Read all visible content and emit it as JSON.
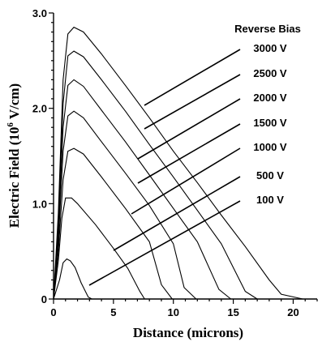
{
  "chart_data": {
    "type": "line",
    "title": "",
    "xlabel": "Distance (microns)",
    "ylabel_main": "Electric Field  (10",
    "ylabel_sup": "6",
    "ylabel_end": " V/cm)",
    "xlim": [
      0,
      22
    ],
    "ylim": [
      0,
      3.0
    ],
    "x_ticks": [
      0,
      5,
      10,
      15,
      20
    ],
    "x_tick_labels": [
      "0",
      "5",
      "10",
      "15",
      "20"
    ],
    "y_ticks": [
      0,
      1.0,
      2.0,
      3.0
    ],
    "y_tick_labels": [
      "0",
      "1.0",
      "2.0",
      "3.0"
    ],
    "legend_title": "Reverse Bias",
    "legend_placement": "right",
    "grid": false,
    "series": [
      {
        "name": "100 V",
        "x": [
          0,
          0.5,
          0.8,
          1.1,
          1.4,
          1.8,
          2.3,
          2.9,
          3.2
        ],
        "y": [
          0,
          0.2,
          0.38,
          0.42,
          0.4,
          0.33,
          0.17,
          0.02,
          0
        ]
      },
      {
        "name": "500 V",
        "x": [
          0,
          0.4,
          0.7,
          1.0,
          1.5,
          2.0,
          3.5,
          5.0,
          6.2,
          7.2,
          7.6
        ],
        "y": [
          0,
          0.4,
          0.85,
          1.06,
          1.06,
          1.0,
          0.78,
          0.53,
          0.32,
          0.08,
          0
        ]
      },
      {
        "name": "1000 V",
        "x": [
          0,
          0.4,
          0.8,
          1.2,
          1.7,
          2.5,
          4,
          6,
          8,
          9.0,
          9.9
        ],
        "y": [
          0,
          0.5,
          1.25,
          1.55,
          1.58,
          1.52,
          1.28,
          0.95,
          0.6,
          0.15,
          0
        ]
      },
      {
        "name": "1500 V",
        "x": [
          0,
          0.4,
          0.8,
          1.2,
          1.7,
          2.5,
          4,
          6,
          8,
          10,
          10.9,
          11.9
        ],
        "y": [
          0,
          0.6,
          1.55,
          1.92,
          1.97,
          1.9,
          1.65,
          1.32,
          0.98,
          0.58,
          0.12,
          0
        ]
      },
      {
        "name": "2000 V",
        "x": [
          0,
          0.4,
          0.8,
          1.2,
          1.7,
          2.5,
          4,
          6,
          8,
          10,
          12,
          13.8,
          14.8
        ],
        "y": [
          0,
          0.7,
          1.8,
          2.24,
          2.3,
          2.23,
          1.98,
          1.65,
          1.3,
          0.95,
          0.6,
          0.1,
          0
        ]
      },
      {
        "name": "2500 V",
        "x": [
          0,
          0.4,
          0.8,
          1.2,
          1.7,
          2.5,
          4,
          6,
          8,
          10,
          12,
          14,
          16.0,
          17.0
        ],
        "y": [
          0,
          0.8,
          2.05,
          2.55,
          2.6,
          2.54,
          2.3,
          1.97,
          1.62,
          1.28,
          0.93,
          0.58,
          0.08,
          0
        ]
      },
      {
        "name": "3000 V",
        "x": [
          0,
          0.4,
          0.8,
          1.2,
          1.7,
          2.5,
          4,
          6,
          8,
          10,
          12,
          14,
          16,
          18.0,
          19.0,
          20.8
        ],
        "y": [
          0,
          0.9,
          2.3,
          2.78,
          2.85,
          2.8,
          2.57,
          2.24,
          1.9,
          1.55,
          1.22,
          0.88,
          0.55,
          0.2,
          0.05,
          0
        ]
      }
    ]
  }
}
